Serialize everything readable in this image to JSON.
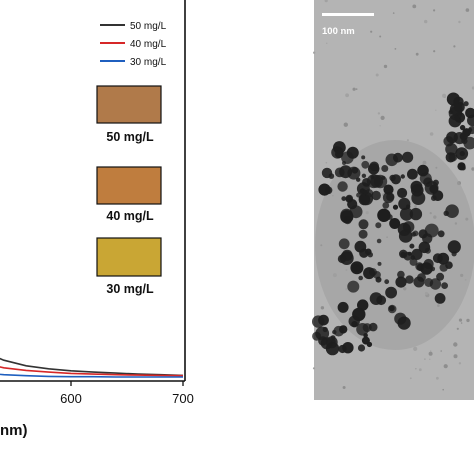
{
  "chart_data": {
    "type": "line",
    "xlabel_fragment": "nm)",
    "x_ticks": [
      "600",
      "700"
    ],
    "xlim": [
      500,
      700
    ],
    "ylim": [
      0,
      1
    ],
    "series": [
      {
        "name": "50 mg/L",
        "color": "#333333",
        "x": [
          500,
          520,
          540,
          560,
          580,
          600,
          620,
          640,
          660,
          680,
          700
        ],
        "y": [
          0.16,
          0.112,
          0.083,
          0.066,
          0.057,
          0.051,
          0.047,
          0.044,
          0.041,
          0.039,
          0.037
        ]
      },
      {
        "name": "40 mg/L",
        "color": "#d62728",
        "x": [
          500,
          520,
          540,
          560,
          580,
          600,
          620,
          640,
          660,
          680,
          700
        ],
        "y": [
          0.1,
          0.075,
          0.06,
          0.052,
          0.047,
          0.043,
          0.041,
          0.039,
          0.038,
          0.037,
          0.036
        ]
      },
      {
        "name": "30 mg/L",
        "color": "#1f5fbf",
        "x": [
          500,
          520,
          540,
          560,
          580,
          600,
          620,
          640,
          660,
          680,
          700
        ],
        "y": [
          0.06,
          0.045,
          0.039,
          0.036,
          0.034,
          0.033,
          0.033,
          0.032,
          0.032,
          0.032,
          0.032
        ]
      }
    ]
  },
  "swatches": [
    {
      "label": "50 mg/L",
      "color": "#b07a4a"
    },
    {
      "label": "40 mg/L",
      "color": "#bf7d3e"
    },
    {
      "label": "30 mg/L",
      "color": "#c9a634"
    }
  ],
  "micrograph": {
    "scale_bar_label": "100 nm",
    "background": "#b4b4b4",
    "particle_color": "#1e1e1e"
  }
}
